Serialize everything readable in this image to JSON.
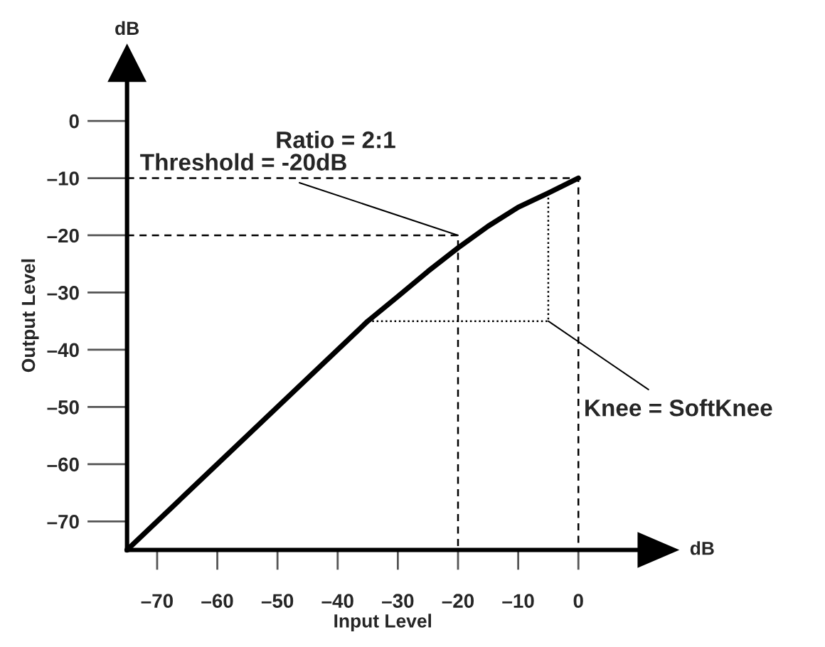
{
  "chart_data": {
    "type": "line",
    "xlabel": "Input Level",
    "ylabel": "Output Level",
    "xlim": [
      -75,
      10
    ],
    "ylim": [
      -75,
      7
    ],
    "xticks": [
      {
        "value": -70,
        "label": "–70"
      },
      {
        "value": -60,
        "label": "–60"
      },
      {
        "value": -50,
        "label": "–50"
      },
      {
        "value": -40,
        "label": "–40"
      },
      {
        "value": -30,
        "label": "–30"
      },
      {
        "value": -20,
        "label": "–20"
      },
      {
        "value": -10,
        "label": "–10"
      },
      0
    ],
    "yticks": [
      {
        "value": -70,
        "label": "–70"
      },
      {
        "value": -60,
        "label": "–60"
      },
      {
        "value": -50,
        "label": "–50"
      },
      {
        "value": -40,
        "label": "–40"
      },
      {
        "value": -30,
        "label": "–30"
      },
      {
        "value": -20,
        "label": "–20"
      },
      {
        "value": -10,
        "label": "–10"
      },
      0
    ],
    "grid": false,
    "marker": "none",
    "series": [
      {
        "color": "#000000",
        "line_style": "solid",
        "x": [
          -75,
          -35,
          -30,
          -25,
          -20,
          -15,
          -10,
          -5,
          0
        ],
        "values": [
          -75,
          -35,
          -30.7,
          -26.3,
          -22.2,
          -18.4,
          -15.1,
          -12.6,
          -10
        ]
      },
      {
        "color": "#000000",
        "line_style": "dashed",
        "x": [
          -75,
          0,
          0
        ],
        "values": [
          -10,
          -10,
          -75
        ]
      },
      {
        "color": "#000000",
        "line_style": "dashed",
        "x": [
          -75,
          -20,
          -20
        ],
        "values": [
          -20,
          -20,
          -75
        ]
      },
      {
        "color": "#000000",
        "line_style": "dotted",
        "x": [
          -35,
          -5,
          -5
        ],
        "values": [
          -35,
          -35,
          -12.6
        ]
      }
    ],
    "annotations": [
      "Ratio = 2:1",
      {
        "text": "Threshold = -20dB",
        "x": -20,
        "y": -20
      },
      {
        "text": "Knee = SoftKnee",
        "x": -5,
        "y": -35
      },
      "dB",
      "dB"
    ]
  }
}
